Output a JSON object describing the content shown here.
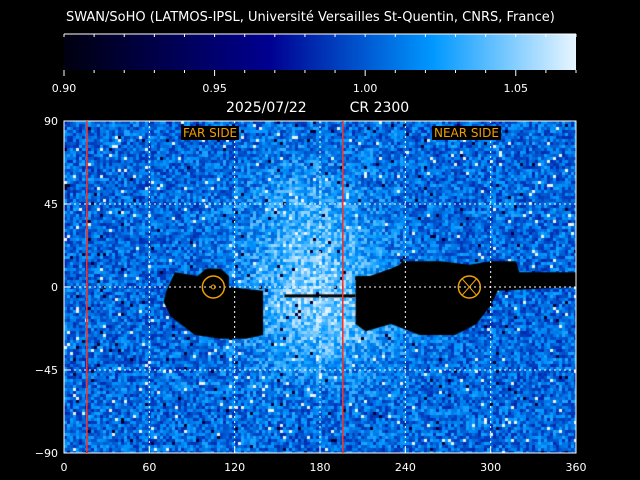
{
  "credit": "SWAN/SoHO (LATMOS-IPSL, Université Versailles St-Quentin, CNRS, France)",
  "title_date": "2025/07/22",
  "title_cr": "CR 2300",
  "colorbar": {
    "range": [
      0.9,
      1.07
    ],
    "ticks": [
      "0.90",
      "0.95",
      "1.00",
      "1.05"
    ],
    "tick_values": [
      0.9,
      0.95,
      1.0,
      1.05
    ],
    "colors": [
      "#000010",
      "#000090",
      "#0098ff",
      "#e8f6ff"
    ]
  },
  "labels": {
    "far_side": "FAR SIDE",
    "near_side": "NEAR SIDE"
  },
  "chart_data": {
    "type": "heatmap",
    "xlim": [
      0,
      360
    ],
    "ylim": [
      -90,
      90
    ],
    "xticks": [
      0,
      60,
      120,
      180,
      240,
      300,
      360
    ],
    "xtick_labels": [
      "0",
      "60",
      "120",
      "180",
      "240",
      "300",
      "360"
    ],
    "yticks": [
      90,
      45,
      0,
      -45,
      -90
    ],
    "ytick_labels": [
      "90",
      "45",
      "0",
      "−45",
      "−90"
    ],
    "grid": true,
    "red_lines_lon": [
      16,
      196
    ],
    "far_side_marker_lon": 105,
    "near_side_marker_lon": 285,
    "marker_color": "#f0a000",
    "line_color": "#ff3020"
  }
}
